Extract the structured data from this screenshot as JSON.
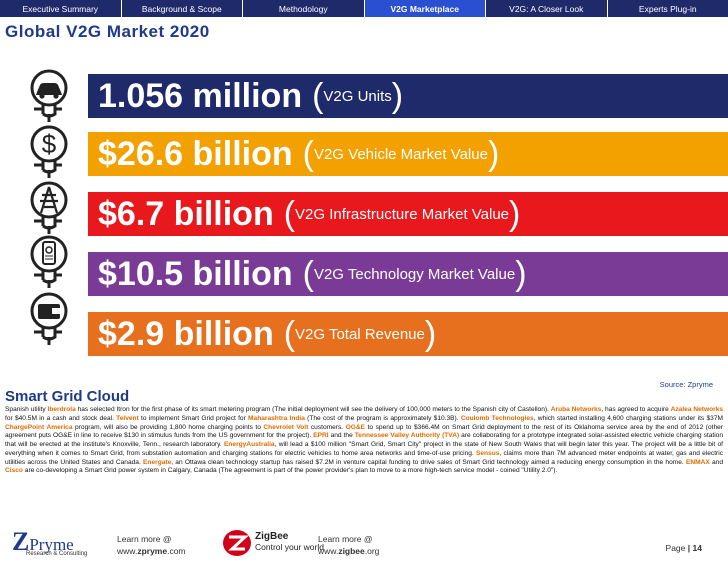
{
  "nav": {
    "tabs": [
      {
        "label": "Executive Summary",
        "active": false
      },
      {
        "label": "Background & Scope",
        "active": false
      },
      {
        "label": "Methodology",
        "active": false
      },
      {
        "label": "V2G Marketplace",
        "active": true
      },
      {
        "label": "V2G: A Closer Look",
        "active": false
      },
      {
        "label": "Experts Plug-in",
        "active": false
      }
    ]
  },
  "title": "Global V2G Market 2020",
  "bands": [
    {
      "value": "1.056 million",
      "label": "V2G Units",
      "color": "#1f2a6b",
      "icon": "electric-car-plug-icon"
    },
    {
      "value": "$26.6 billion",
      "label": "V2G Vehicle Market Value",
      "color": "#f2a100",
      "icon": "dollar-plug-icon"
    },
    {
      "value": "$6.7 billion",
      "label": "V2G Infrastructure Market Value",
      "color": "#e8181c",
      "icon": "power-tower-plug-icon"
    },
    {
      "value": "$10.5 billion",
      "label": "V2G Technology Market Value",
      "color": "#7a3b96",
      "icon": "phone-plug-icon"
    },
    {
      "value": "$2.9 billion",
      "label": "V2G Total Revenue",
      "color": "#e6701e",
      "icon": "wallet-plug-icon"
    }
  ],
  "source": "Source: Zpryme",
  "section_title": "Smart Grid Cloud",
  "article": [
    {
      "t": "Spanish utility "
    },
    {
      "t": "Iberdrola",
      "hl": true
    },
    {
      "t": " has selected Itron for the first phase of its smart metering program (The initial deployment will see the delivery of 100,000 meters to the Spanish city of Castellon). "
    },
    {
      "t": "Aruba Networks",
      "hl": true
    },
    {
      "t": ", has agreed to acquire "
    },
    {
      "t": "Azalea Networks",
      "hl": true
    },
    {
      "t": " for $40.5M in a cash and stock deal. "
    },
    {
      "t": "Telvent",
      "hl": true
    },
    {
      "t": " to implement Smart Grid project for "
    },
    {
      "t": "Maharashtra India",
      "hl": true
    },
    {
      "t": " (The cost of the program is approximately $10.3B). "
    },
    {
      "t": "Coulomb Technologies",
      "hl": true
    },
    {
      "t": ", which started installing 4,600 charging stations under its $37M "
    },
    {
      "t": "ChargePoint America",
      "hl": true
    },
    {
      "t": " program, will also be providing 1,800 home charging points to "
    },
    {
      "t": "Chevrolet Volt",
      "hl": true
    },
    {
      "t": " customers. "
    },
    {
      "t": "OG&E",
      "hl": true
    },
    {
      "t": " to spend up to $366.4M on Smart Grid deployment to the rest of its Oklahoma service area by the end of 2012 (other agreement puts OG&E in line to receive $130 in stimulus funds from the US government for the project). "
    },
    {
      "t": "EPRI",
      "hl": true
    },
    {
      "t": " and the "
    },
    {
      "t": "Tennessee Valley Authority (TVA)",
      "hl": true
    },
    {
      "t": " are collaborating for a prototype integrated solar-assisted electric vehicle charging station that will be erected at the institute's Knoxville, Tenn., research laboratory. "
    },
    {
      "t": "EnergyAustralia",
      "hl": true
    },
    {
      "t": ", will lead a $100 million \"Smart Grid, Smart City\" project in the state of New South Wales that will begin later this year. The project will be a little bit of everything when it comes to Smart Grid, from substation automation and charging stations for electric vehicles to home area networks and time-of-use pricing. "
    },
    {
      "t": "Sensus",
      "hl": true
    },
    {
      "t": ", claims more than 7M advanced meter endpoints at water, gas and electric utilities across the United States and Canada. "
    },
    {
      "t": "Energate",
      "hl": true
    },
    {
      "t": ", an Ottawa clean technology startup has raised $7.2M in venture capital funding to drive sales of Smart Grid technology aimed a reducing energy consumption in the home. "
    },
    {
      "t": "ENMAX",
      "hl": true
    },
    {
      "t": " and "
    },
    {
      "t": "Cisco",
      "hl": true
    },
    {
      "t": " are co-developing a Smart Grid power system in Calgary, Canada (The agreement is part of the power provider's plan to move to a more high-tech service model - coined \"Utility 2.0\")."
    }
  ],
  "footer": {
    "zpryme_logo_text": "Pryme",
    "zpryme_logo_initial": "Z",
    "zpryme_tagline": "Research & Consulting",
    "learn_more_1": "Learn more @",
    "url_1_prefix": "www.",
    "url_1_bold": "zpryme",
    "url_1_suffix": ".com",
    "zigbee_logo_text": "ZigBee",
    "zigbee_tagline": "Control your world",
    "learn_more_2": "Learn more @",
    "url_2_prefix": "www.",
    "url_2_bold": "zigbee",
    "url_2_suffix": ".org",
    "page_label": "Page",
    "page_sep": "|",
    "page_number": "14"
  }
}
